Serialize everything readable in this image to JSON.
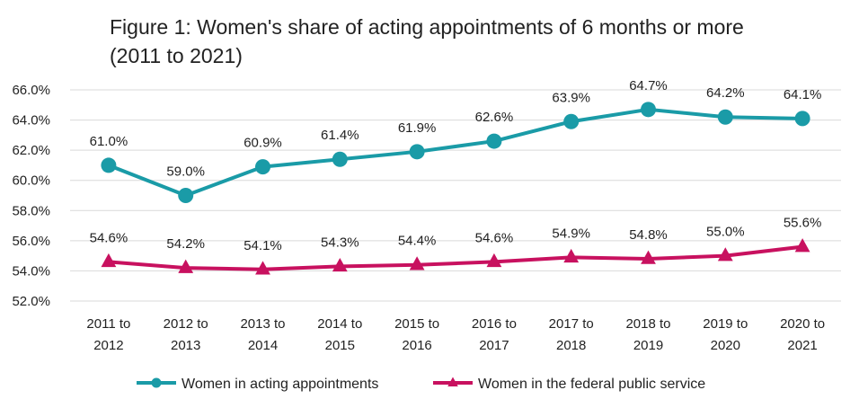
{
  "chart_data": {
    "type": "line",
    "title_line1": "Figure 1: Women's share of acting appointments of 6 months or more",
    "title_line2": "(2011 to 2021)",
    "categories": [
      [
        "2011 to",
        "2012"
      ],
      [
        "2012 to",
        "2013"
      ],
      [
        "2013 to",
        "2014"
      ],
      [
        "2014 to",
        "2015"
      ],
      [
        "2015 to",
        "2016"
      ],
      [
        "2016 to",
        "2017"
      ],
      [
        "2017 to",
        "2018"
      ],
      [
        "2018 to",
        "2019"
      ],
      [
        "2019 to",
        "2020"
      ],
      [
        "2020 to",
        "2021"
      ]
    ],
    "ylim": [
      52,
      66
    ],
    "yticks": [
      52,
      54,
      56,
      58,
      60,
      62,
      64,
      66
    ],
    "ytick_labels": [
      "52.0%",
      "54.0%",
      "56.0%",
      "58.0%",
      "60.0%",
      "62.0%",
      "64.0%",
      "66.0%"
    ],
    "grid": true,
    "legend_position": "bottom",
    "series": [
      {
        "name": "Women in acting appointments",
        "color": "#1a9ba7",
        "marker": "circle",
        "values": [
          61.0,
          59.0,
          60.9,
          61.4,
          61.9,
          62.6,
          63.9,
          64.7,
          64.2,
          64.1
        ],
        "labels": [
          "61.0%",
          "59.0%",
          "60.9%",
          "61.4%",
          "61.9%",
          "62.6%",
          "63.9%",
          "64.7%",
          "64.2%",
          "64.1%"
        ]
      },
      {
        "name": "Women in the federal public service",
        "color": "#c8115f",
        "marker": "triangle",
        "values": [
          54.6,
          54.2,
          54.1,
          54.3,
          54.4,
          54.6,
          54.9,
          54.8,
          55.0,
          55.6
        ],
        "labels": [
          "54.6%",
          "54.2%",
          "54.1%",
          "54.3%",
          "54.4%",
          "54.6%",
          "54.9%",
          "54.8%",
          "55.0%",
          "55.6%"
        ]
      }
    ]
  }
}
